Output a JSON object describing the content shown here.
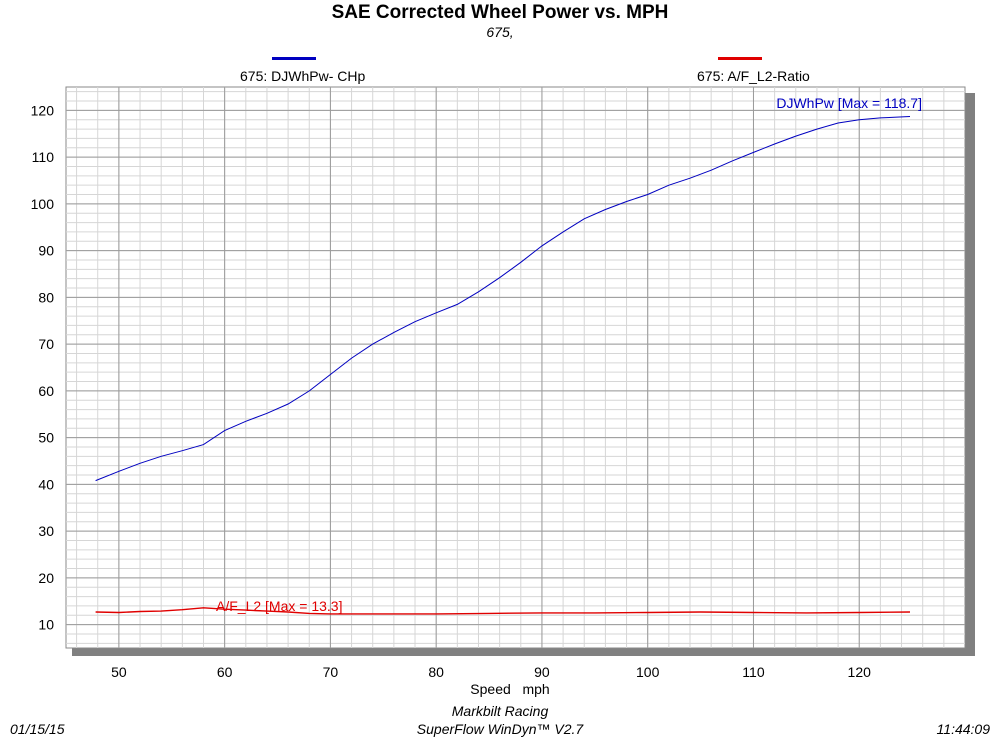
{
  "chart_data": {
    "type": "line",
    "title": "SAE Corrected Wheel Power vs. MPH",
    "subtitle": "675,",
    "xlabel": "Speed   mph",
    "xlim": [
      45,
      130
    ],
    "ylim": [
      5,
      125
    ],
    "xticks": [
      50,
      60,
      70,
      80,
      90,
      100,
      110,
      120
    ],
    "yticks": [
      10,
      20,
      30,
      40,
      50,
      60,
      70,
      80,
      90,
      100,
      110,
      120
    ],
    "grid": true,
    "legend": [
      {
        "label": "675: DJWhPw- CHp",
        "color": "#0000c0"
      },
      {
        "label": "675: A/F_L2-Ratio",
        "color": "#e00000"
      }
    ],
    "series": [
      {
        "name": "675: DJWhPw- CHp",
        "color": "#0000c0",
        "annotation": "DJWhPw [Max = 118.7]",
        "points": [
          [
            47.8,
            40.8
          ],
          [
            50,
            42.8
          ],
          [
            52,
            44.5
          ],
          [
            54,
            46.0
          ],
          [
            56,
            47.2
          ],
          [
            58,
            48.5
          ],
          [
            60,
            51.5
          ],
          [
            62,
            53.5
          ],
          [
            64,
            55.2
          ],
          [
            66,
            57.2
          ],
          [
            68,
            60.0
          ],
          [
            70,
            63.5
          ],
          [
            72,
            67.0
          ],
          [
            74,
            70.0
          ],
          [
            76,
            72.5
          ],
          [
            78,
            74.8
          ],
          [
            80,
            76.7
          ],
          [
            82,
            78.5
          ],
          [
            84,
            81.2
          ],
          [
            86,
            84.2
          ],
          [
            88,
            87.5
          ],
          [
            90,
            91.0
          ],
          [
            92,
            94.0
          ],
          [
            94,
            96.8
          ],
          [
            96,
            98.8
          ],
          [
            98,
            100.5
          ],
          [
            100,
            102.0
          ],
          [
            102,
            104.0
          ],
          [
            104,
            105.5
          ],
          [
            106,
            107.2
          ],
          [
            108,
            109.2
          ],
          [
            110,
            111.0
          ],
          [
            112,
            112.8
          ],
          [
            114,
            114.5
          ],
          [
            116,
            116.0
          ],
          [
            118,
            117.3
          ],
          [
            120,
            118.0
          ],
          [
            122,
            118.4
          ],
          [
            124.8,
            118.7
          ]
        ]
      },
      {
        "name": "675: A/F_L2-Ratio",
        "color": "#e00000",
        "annotation": "A/F_L2 [Max = 13.3]",
        "points": [
          [
            47.8,
            12.7
          ],
          [
            50,
            12.6
          ],
          [
            52,
            12.8
          ],
          [
            54,
            12.9
          ],
          [
            56,
            13.2
          ],
          [
            58,
            13.6
          ],
          [
            60,
            13.3
          ],
          [
            62,
            13.1
          ],
          [
            64,
            12.9
          ],
          [
            66,
            12.7
          ],
          [
            68,
            12.4
          ],
          [
            70,
            12.3
          ],
          [
            75,
            12.3
          ],
          [
            80,
            12.3
          ],
          [
            85,
            12.4
          ],
          [
            90,
            12.5
          ],
          [
            95,
            12.5
          ],
          [
            100,
            12.6
          ],
          [
            105,
            12.7
          ],
          [
            110,
            12.6
          ],
          [
            115,
            12.5
          ],
          [
            120,
            12.6
          ],
          [
            124.8,
            12.7
          ]
        ]
      }
    ]
  },
  "footer": {
    "company": "Markbilt Racing",
    "software": "SuperFlow WinDyn™ V2.7",
    "date": "01/15/15",
    "time": "11:44:09"
  }
}
